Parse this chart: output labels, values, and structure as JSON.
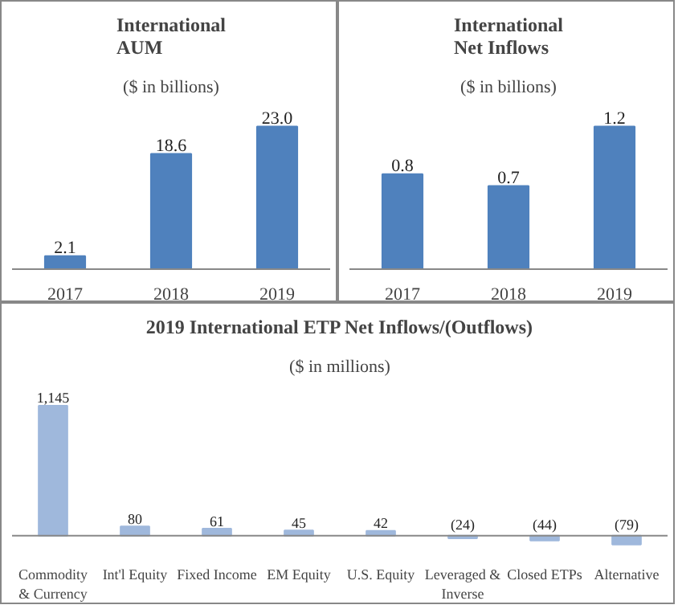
{
  "chart_data": [
    {
      "type": "bar",
      "title": "International\nAUM",
      "subtitle": "($ in billions)",
      "categories": [
        "2017",
        "2018",
        "2019"
      ],
      "values": [
        2.1,
        18.6,
        23.0
      ],
      "value_labels": [
        "2.1",
        "18.6",
        "23.0"
      ],
      "color": "#4f81bd"
    },
    {
      "type": "bar",
      "title": "International\nNet Inflows",
      "subtitle": "($ in billions)",
      "categories": [
        "2017",
        "2018",
        "2019"
      ],
      "values": [
        0.8,
        0.7,
        1.2
      ],
      "value_labels": [
        "0.8",
        "0.7",
        "1.2"
      ],
      "color": "#4f81bd"
    },
    {
      "type": "bar",
      "title": "2019 International ETP Net Inflows/(Outflows)",
      "subtitle": "($ in millions)",
      "categories": [
        "Commodity\n& Currency",
        "Int'l Equity",
        "Fixed Income",
        "EM Equity",
        "U.S. Equity",
        "Leveraged &\nInverse",
        "Closed ETPs",
        "Alternative"
      ],
      "values": [
        1145,
        80,
        61,
        45,
        42,
        -24,
        -44,
        -79
      ],
      "value_labels": [
        "1,145",
        "80",
        "61",
        "45",
        "42",
        "(24)",
        "(44)",
        "(79)"
      ],
      "color": "#9fb8dc"
    }
  ]
}
